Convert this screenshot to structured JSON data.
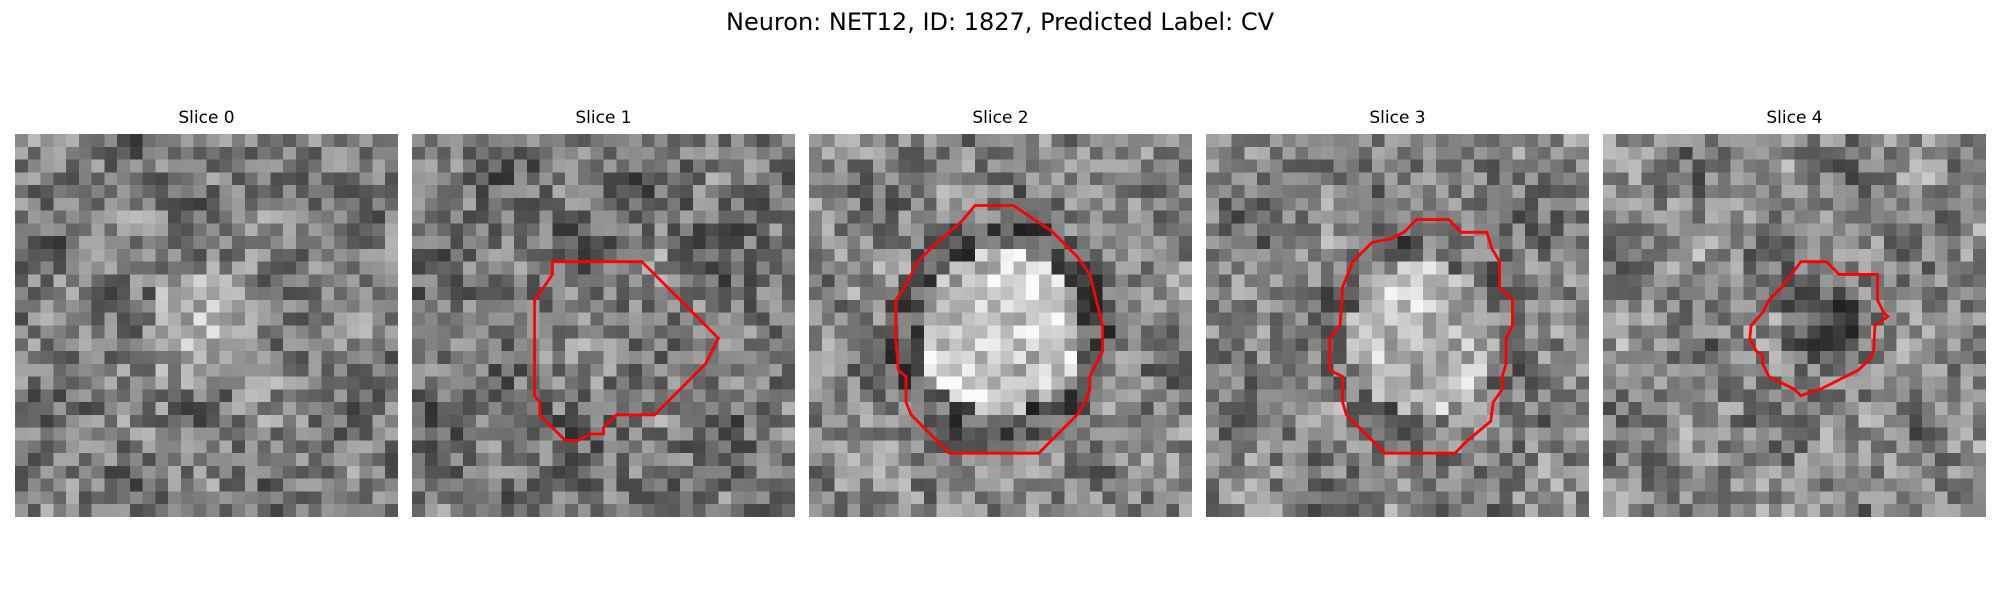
{
  "figure": {
    "title": "Neuron: NET12, ID: 1827, Predicted Label: CV"
  },
  "slices": [
    {
      "label": "Slice 0",
      "has_contour": false,
      "brightness": [
        0.48,
        0.62,
        0.5
      ]
    },
    {
      "label": "Slice 1",
      "has_contour": true,
      "brightness": [
        0.45,
        0.5,
        0.48
      ]
    },
    {
      "label": "Slice 2",
      "has_contour": true,
      "brightness": [
        0.52,
        0.78,
        0.34
      ]
    },
    {
      "label": "Slice 3",
      "has_contour": true,
      "brightness": [
        0.5,
        0.72,
        0.44
      ]
    },
    {
      "label": "Slice 4",
      "has_contour": true,
      "brightness": [
        0.52,
        0.36,
        0.5
      ]
    }
  ],
  "colors": {
    "contour": "#ff0000",
    "background": "#ffffff"
  }
}
